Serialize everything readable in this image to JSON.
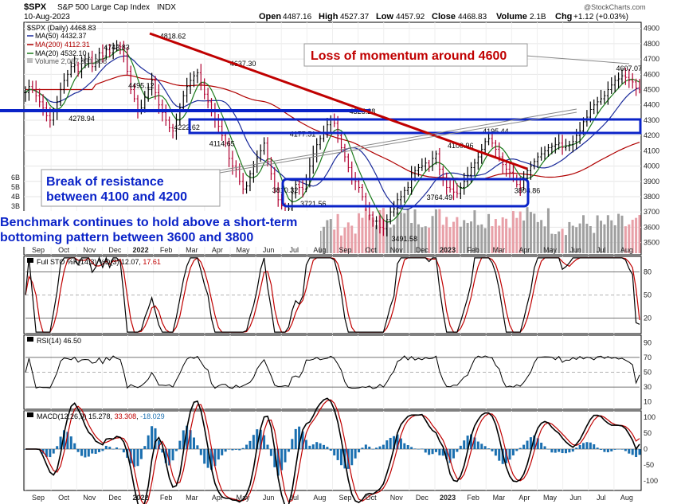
{
  "header": {
    "symbol": "$SPX",
    "name": "S&P 500 Large Cap Index",
    "exchange": "INDX",
    "date": "10-Aug-2023",
    "open_label": "Open",
    "open": "4487.16",
    "high_label": "High",
    "high": "4527.37",
    "low_label": "Low",
    "low": "4457.92",
    "close_label": "Close",
    "close": "4468.83",
    "volume_label": "Volume",
    "volume": "2.1B",
    "chg_label": "Chg",
    "chg": "+1.12 (+0.03%)",
    "watermark": "@StockCharts.com"
  },
  "legend": {
    "price": "$SPX (Daily) 4468.83",
    "ma50": "MA(50) 4432.37",
    "ma200": "MA(200) 4112.31",
    "ma20": "MA(20) 4532.10",
    "volume": "Volume 2,067,331,968"
  },
  "colors": {
    "price_up": "#000000",
    "price_down": "#b00030",
    "ma50": "#1a2a9a",
    "ma200": "#b00000",
    "ma20": "#1a7a1a",
    "volume_up": "#a0a0a0",
    "volume_down": "#e8a0a8",
    "annotation_blue": "#0a23c8",
    "annotation_red": "#c00000",
    "macd_hist": "#1a6fb0"
  },
  "annotations": {
    "momentum": "Loss of momentum around 4600",
    "resistance_line1": "Break of resistance",
    "resistance_line2": "between 4100 and 4200",
    "bottom_line1": "Benchmark continues to hold above a short-term",
    "bottom_line2": "bottoming pattern between 3600 and 3800"
  },
  "chart_data": [
    {
      "type": "candlestick",
      "panel": "price",
      "series_name": "$SPX (Daily)",
      "x_labels": [
        "Sep",
        "Oct",
        "Nov",
        "Dec",
        "2022",
        "Feb",
        "Mar",
        "Apr",
        "May",
        "Jun",
        "Jul",
        "Aug",
        "Sep",
        "Oct",
        "Nov",
        "Dec",
        "2023",
        "Feb",
        "Mar",
        "Apr",
        "May",
        "Jun",
        "Jul",
        "Aug"
      ],
      "y_ticks": [
        3500,
        3600,
        3700,
        3800,
        3900,
        4000,
        4100,
        4200,
        4300,
        4400,
        4500,
        4600,
        4700,
        4800,
        4900
      ],
      "ylim": [
        3420,
        4940
      ],
      "volume_ticks": [
        "6B",
        "5B",
        "4B",
        "3B"
      ],
      "close_path": [
        [
          0,
          4480
        ],
        [
          1,
          4520
        ],
        [
          2,
          4500
        ],
        [
          3,
          4460
        ],
        [
          4,
          4420
        ],
        [
          5,
          4380
        ],
        [
          6,
          4330
        ],
        [
          7,
          4300
        ],
        [
          8,
          4360
        ],
        [
          9,
          4420
        ],
        [
          10,
          4500
        ],
        [
          11,
          4560
        ],
        [
          12,
          4600
        ],
        [
          13,
          4650
        ],
        [
          14,
          4660
        ],
        [
          15,
          4620
        ],
        [
          16,
          4690
        ],
        [
          17,
          4700
        ],
        [
          18,
          4710
        ],
        [
          19,
          4650
        ],
        [
          20,
          4680
        ],
        [
          21,
          4740
        ],
        [
          22,
          4720
        ],
        [
          23,
          4760
        ],
        [
          24,
          4740
        ],
        [
          25,
          4770
        ],
        [
          26,
          4790
        ],
        [
          27,
          4780
        ],
        [
          28,
          4720
        ],
        [
          29,
          4620
        ],
        [
          30,
          4500
        ],
        [
          31,
          4440
        ],
        [
          32,
          4360
        ],
        [
          33,
          4380
        ],
        [
          34,
          4450
        ],
        [
          35,
          4500
        ],
        [
          36,
          4560
        ],
        [
          37,
          4480
        ],
        [
          38,
          4400
        ],
        [
          39,
          4350
        ],
        [
          40,
          4300
        ],
        [
          41,
          4250
        ],
        [
          42,
          4230
        ],
        [
          43,
          4300
        ],
        [
          44,
          4380
        ],
        [
          45,
          4460
        ],
        [
          46,
          4520
        ],
        [
          47,
          4560
        ],
        [
          48,
          4590
        ],
        [
          49,
          4610
        ],
        [
          50,
          4540
        ],
        [
          51,
          4470
        ],
        [
          52,
          4420
        ],
        [
          53,
          4360
        ],
        [
          54,
          4300
        ],
        [
          55,
          4260
        ],
        [
          56,
          4200
        ],
        [
          57,
          4150
        ],
        [
          58,
          4050
        ],
        [
          59,
          4000
        ],
        [
          60,
          3980
        ],
        [
          61,
          3900
        ],
        [
          62,
          3850
        ],
        [
          63,
          3870
        ],
        [
          64,
          3950
        ],
        [
          65,
          4000
        ],
        [
          66,
          4050
        ],
        [
          67,
          4100
        ],
        [
          68,
          4150
        ],
        [
          69,
          4030
        ],
        [
          70,
          3950
        ],
        [
          71,
          3850
        ],
        [
          72,
          3780
        ],
        [
          73,
          3740
        ],
        [
          74,
          3680
        ],
        [
          75,
          3720
        ],
        [
          76,
          3820
        ],
        [
          77,
          3880
        ],
        [
          78,
          3860
        ],
        [
          79,
          3850
        ],
        [
          80,
          3920
        ],
        [
          81,
          4000
        ],
        [
          82,
          4080
        ],
        [
          83,
          4140
        ],
        [
          84,
          4180
        ],
        [
          85,
          4220
        ],
        [
          86,
          4270
        ],
        [
          87,
          4300
        ],
        [
          88,
          4280
        ],
        [
          89,
          4200
        ],
        [
          90,
          4120
        ],
        [
          91,
          4060
        ],
        [
          92,
          3990
        ],
        [
          93,
          3920
        ],
        [
          94,
          3900
        ],
        [
          95,
          3860
        ],
        [
          96,
          3800
        ],
        [
          97,
          3740
        ],
        [
          98,
          3680
        ],
        [
          99,
          3640
        ],
        [
          100,
          3640
        ],
        [
          101,
          3600
        ],
        [
          102,
          3590
        ],
        [
          103,
          3650
        ],
        [
          104,
          3700
        ],
        [
          105,
          3720
        ],
        [
          106,
          3780
        ],
        [
          107,
          3800
        ],
        [
          108,
          3840
        ],
        [
          109,
          3860
        ],
        [
          110,
          3950
        ],
        [
          111,
          3970
        ],
        [
          112,
          3990
        ],
        [
          113,
          4000
        ],
        [
          114,
          4020
        ],
        [
          115,
          4000
        ],
        [
          116,
          4050
        ],
        [
          117,
          4080
        ],
        [
          118,
          3980
        ],
        [
          119,
          3920
        ],
        [
          120,
          3860
        ],
        [
          121,
          3850
        ],
        [
          122,
          3830
        ],
        [
          123,
          3820
        ],
        [
          124,
          3860
        ],
        [
          125,
          3900
        ],
        [
          126,
          3940
        ],
        [
          127,
          3990
        ],
        [
          128,
          4020
        ],
        [
          129,
          4060
        ],
        [
          130,
          4110
        ],
        [
          131,
          4160
        ],
        [
          132,
          4180
        ],
        [
          133,
          4150
        ],
        [
          134,
          4110
        ],
        [
          135,
          4060
        ],
        [
          136,
          4010
        ],
        [
          137,
          3980
        ],
        [
          138,
          3960
        ],
        [
          139,
          3920
        ],
        [
          140,
          3880
        ],
        [
          141,
          3860
        ],
        [
          142,
          3920
        ],
        [
          143,
          3970
        ],
        [
          144,
          4000
        ],
        [
          145,
          4030
        ],
        [
          146,
          4060
        ],
        [
          147,
          4080
        ],
        [
          148,
          4100
        ],
        [
          149,
          4120
        ],
        [
          150,
          4130
        ],
        [
          151,
          4140
        ],
        [
          152,
          4150
        ],
        [
          153,
          4120
        ],
        [
          154,
          4130
        ],
        [
          155,
          4140
        ],
        [
          156,
          4160
        ],
        [
          157,
          4200
        ],
        [
          158,
          4230
        ],
        [
          159,
          4290
        ],
        [
          160,
          4320
        ],
        [
          161,
          4370
        ],
        [
          162,
          4400
        ],
        [
          163,
          4420
        ],
        [
          164,
          4440
        ],
        [
          165,
          4460
        ],
        [
          166,
          4500
        ],
        [
          167,
          4530
        ],
        [
          168,
          4560
        ],
        [
          169,
          4570
        ],
        [
          170,
          4590
        ],
        [
          171,
          4580
        ],
        [
          172,
          4560
        ],
        [
          173,
          4550
        ],
        [
          174,
          4510
        ],
        [
          175,
          4500
        ]
      ],
      "price_labels": [
        {
          "text": "4278.94",
          "x": 16,
          "value": 4278.94
        },
        {
          "text": "4743.83",
          "x": 26,
          "value": 4743.83
        },
        {
          "text": "4495.12",
          "x": 33,
          "value": 4495.12
        },
        {
          "text": "4818.62",
          "x": 42,
          "value": 4818.62
        },
        {
          "text": "4222.62",
          "x": 46,
          "value": 4222.62
        },
        {
          "text": "4114.65",
          "x": 56,
          "value": 4114.65
        },
        {
          "text": "4637.30",
          "x": 62,
          "value": 4637.3
        },
        {
          "text": "4177.51",
          "x": 79,
          "value": 4177.51
        },
        {
          "text": "3810.32",
          "x": 74,
          "value": 3810.32
        },
        {
          "text": "3721.56",
          "x": 82,
          "value": 3721.56
        },
        {
          "text": "4325.28",
          "x": 96,
          "value": 4325.28
        },
        {
          "text": "3491.58",
          "x": 108,
          "value": 3491.58
        },
        {
          "text": "4100.96",
          "x": 124,
          "value": 4100.96
        },
        {
          "text": "3764.49",
          "x": 118,
          "value": 3764.49
        },
        {
          "text": "4195.44",
          "x": 134,
          "value": 4195.44
        },
        {
          "text": "3808.86",
          "x": 143,
          "value": 3808.86
        },
        {
          "text": "4607.07",
          "x": 172,
          "value": 4607.07
        }
      ],
      "moving_averages": {
        "ma50": {
          "name": "MA(50)",
          "last": 4432.37
        },
        "ma200": {
          "name": "MA(200)",
          "last": 4112.31
        },
        "ma20": {
          "name": "MA(20)",
          "last": 4532.1
        }
      }
    },
    {
      "type": "line",
      "panel": "stochastic",
      "title": "Full STO %K(14,3) %D(3) 12.07, 17.61",
      "k_last": 12.07,
      "d_last": 17.61,
      "y_ticks": [
        20,
        50,
        80
      ],
      "ylim": [
        0,
        100
      ]
    },
    {
      "type": "line",
      "panel": "rsi",
      "title": "RSI(14) 46.50",
      "last": 46.5,
      "y_ticks": [
        10,
        30,
        50,
        70,
        90
      ],
      "ylim": [
        0,
        100
      ]
    },
    {
      "type": "line",
      "panel": "macd",
      "title": "MACD(12,26,9) 15.278, 33.308, -18.029",
      "macd": 15.278,
      "signal": 33.308,
      "histogram": -18.029,
      "y_ticks": [
        -100,
        -50,
        0,
        50,
        100
      ],
      "ylim": [
        -130,
        120
      ]
    }
  ],
  "panel_titles": {
    "sto_prefix": "Full STO %K(14,3) %D(3) 12.07, ",
    "sto_d": "17.61",
    "rsi": "RSI(14) 46.50",
    "macd_prefix": "MACD(12,26,9) 15.278, ",
    "macd_signal": "33.308",
    "macd_sep": ", ",
    "macd_hist": "-18.029"
  },
  "axis_labels": {
    "price_ticks": [
      "4900",
      "4800",
      "4700",
      "4600",
      "4500",
      "4400",
      "4300",
      "4200",
      "4100",
      "4000",
      "3900",
      "3800",
      "3700",
      "3600",
      "3500"
    ],
    "sto_ticks": [
      "80",
      "50",
      "20"
    ],
    "rsi_ticks": [
      "90",
      "70",
      "50",
      "30",
      "10"
    ],
    "macd_ticks": [
      "100",
      "50",
      "0",
      "-50",
      "-100"
    ],
    "x_bottom": [
      "Sep",
      "Oct",
      "Nov",
      "Dec",
      "2022",
      "Feb",
      "Mar",
      "Apr",
      "May",
      "Jun",
      "Jul",
      "Aug",
      "Sep",
      "Oct",
      "Nov",
      "Dec",
      "2023",
      "Feb",
      "Mar",
      "Apr",
      "May",
      "Jun",
      "Jul",
      "Aug"
    ]
  }
}
